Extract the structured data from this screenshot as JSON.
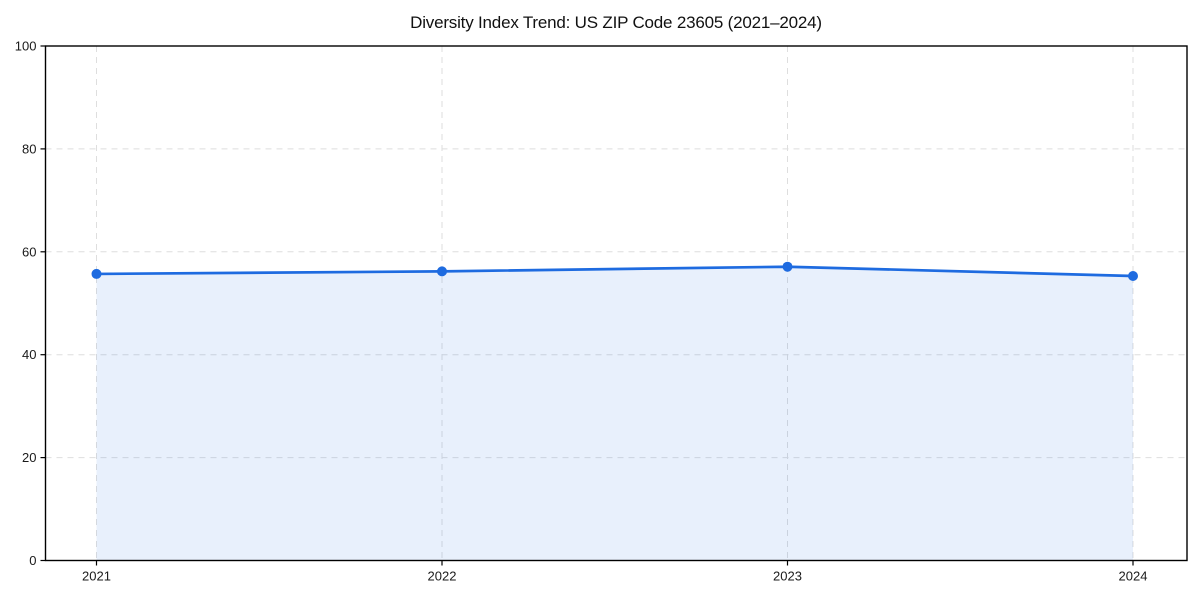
{
  "chart_data": {
    "type": "area",
    "title": "Diversity Index Trend: US ZIP Code 23605 (2021–2024)",
    "series_name": "Diversity Index",
    "categories": [
      "2021",
      "2022",
      "2023",
      "2024"
    ],
    "values": [
      55.7,
      56.2,
      57.1,
      55.3
    ],
    "xlabel": "",
    "ylabel": "",
    "ylim": [
      0,
      100
    ],
    "yticks": [
      0,
      20,
      40,
      60,
      80,
      100
    ],
    "grid": true,
    "grid_style": "dashed",
    "legend": "none",
    "marker": "circle",
    "colors": {
      "line": "#1e6be0",
      "fill_opacity": 0.1,
      "grid": "#dedede",
      "spine": "#000000",
      "text": "#1a1a1a",
      "background": "#ffffff"
    }
  }
}
